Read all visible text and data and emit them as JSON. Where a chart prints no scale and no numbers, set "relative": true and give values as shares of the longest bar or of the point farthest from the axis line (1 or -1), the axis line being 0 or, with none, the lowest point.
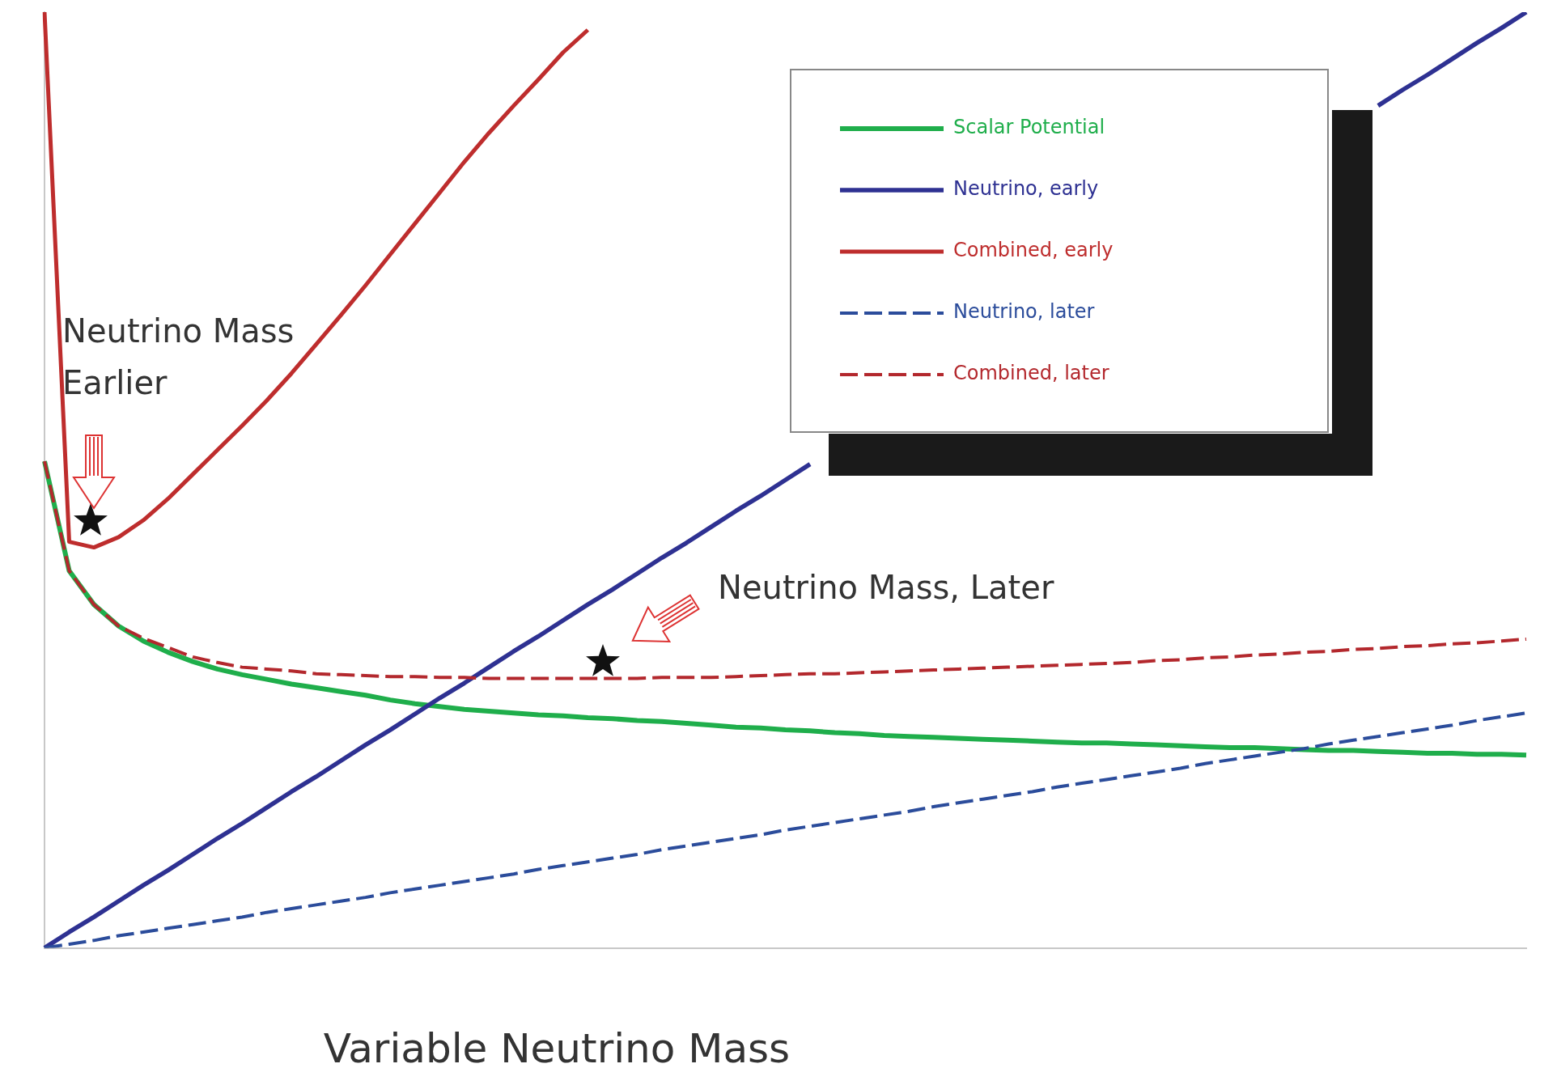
{
  "chart_data": {
    "type": "line",
    "relative": true,
    "xlabel": "Variable Neutrino Mass",
    "grid": false,
    "legend": "top right",
    "marker": "none",
    "annotations": [
      "Neutrino Mass Earlier",
      "Neutrino Mass, Later"
    ],
    "categories": [
      null,
      null,
      null,
      null,
      null,
      null,
      null,
      null,
      null,
      null,
      null,
      null,
      null,
      null,
      null,
      null,
      null,
      null,
      null,
      null,
      null,
      null,
      null,
      null,
      null,
      null,
      null,
      null,
      null,
      null,
      null,
      null,
      null,
      null,
      null,
      null,
      null,
      null,
      null,
      null,
      null,
      null,
      null,
      null,
      null,
      null,
      null,
      null,
      null,
      null,
      null,
      null,
      null,
      null,
      null,
      null,
      null,
      null,
      null,
      null,
      null
    ],
    "series": [
      {
        "name": "Scalar Potential",
        "color": "#1fae4b",
        "line_style": "solid",
        "values": [
          0.52,
          0.403,
          0.367,
          0.344,
          0.328,
          0.316,
          0.306,
          0.298,
          0.292,
          0.287,
          0.282,
          0.278,
          0.274,
          0.27,
          0.265,
          0.261,
          0.258,
          0.255,
          0.253,
          0.251,
          0.249,
          0.248,
          0.246,
          0.245,
          0.243,
          0.242,
          0.24,
          0.238,
          0.236,
          0.235,
          0.233,
          0.232,
          0.23,
          0.229,
          0.227,
          0.226,
          0.225,
          0.224,
          0.223,
          0.222,
          0.221,
          0.22,
          0.219,
          0.219,
          0.218,
          0.217,
          0.216,
          0.215,
          0.214,
          0.214,
          0.213,
          0.212,
          0.211,
          0.211,
          0.21,
          0.209,
          0.208,
          0.208,
          0.207,
          0.207,
          0.206
        ]
      },
      {
        "name": "Neutrino, early",
        "color": "#2e3192",
        "line_style": "solid",
        "values": [
          0,
          0.017,
          0.033,
          0.05,
          0.067,
          0.083,
          0.1,
          0.117,
          0.133,
          0.15,
          0.167,
          0.183,
          0.2,
          0.217,
          0.233,
          0.25,
          0.267,
          0.283,
          0.3,
          0.317,
          0.333,
          0.35,
          0.367,
          0.383,
          0.4,
          0.417,
          0.433,
          0.45,
          0.467,
          0.483,
          0.5,
          0.517,
          null,
          null,
          null,
          null,
          null,
          null,
          null,
          null,
          null,
          null,
          null,
          null,
          null,
          null,
          null,
          null,
          null,
          null,
          null,
          null,
          null,
          null,
          0.9,
          0.917,
          0.933,
          0.95,
          0.967,
          0.983,
          1.0
        ]
      },
      {
        "name": "Combined, early",
        "color": "#be2d2d",
        "line_style": "solid",
        "values": [
          1.0,
          0.434,
          0.428,
          0.439,
          0.457,
          0.48,
          0.506,
          0.532,
          0.558,
          0.585,
          0.614,
          0.645,
          0.676,
          0.708,
          0.741,
          0.774,
          0.807,
          0.84,
          0.871,
          0.9,
          0.928,
          0.957,
          0.981,
          null,
          null,
          null,
          null,
          null,
          null,
          null,
          null,
          null,
          null,
          null,
          null,
          null,
          null,
          null,
          null,
          null,
          null,
          null,
          null,
          null,
          null,
          null,
          null,
          null,
          null,
          null,
          null,
          null,
          null,
          null,
          null,
          null,
          null,
          null,
          null,
          null,
          null
        ]
      },
      {
        "name": "Neutrino, later",
        "color": "#2b4c9b",
        "line_style": "dashed",
        "values": [
          0,
          0.004,
          0.008,
          0.013,
          0.017,
          0.021,
          0.025,
          0.029,
          0.033,
          0.038,
          0.042,
          0.046,
          0.05,
          0.054,
          0.059,
          0.063,
          0.067,
          0.071,
          0.075,
          0.079,
          0.084,
          0.088,
          0.092,
          0.096,
          0.1,
          0.105,
          0.109,
          0.113,
          0.117,
          0.121,
          0.126,
          0.13,
          0.134,
          0.138,
          0.142,
          0.146,
          0.151,
          0.155,
          0.159,
          0.163,
          0.167,
          0.172,
          0.176,
          0.18,
          0.184,
          0.188,
          0.192,
          0.197,
          0.201,
          0.205,
          0.209,
          0.213,
          0.218,
          0.222,
          0.226,
          0.23,
          0.234,
          0.238,
          0.243,
          0.247,
          0.251
        ]
      },
      {
        "name": "Combined, later",
        "color": "#b3282d",
        "line_style": "dashed",
        "values": [
          0.52,
          0.403,
          0.367,
          0.344,
          0.331,
          0.321,
          0.311,
          0.305,
          0.3,
          0.298,
          0.296,
          0.293,
          0.292,
          0.291,
          0.29,
          0.29,
          0.289,
          0.289,
          0.288,
          0.288,
          0.288,
          0.288,
          0.288,
          0.288,
          0.288,
          0.289,
          0.289,
          0.289,
          0.29,
          0.291,
          0.292,
          0.293,
          0.293,
          0.294,
          0.295,
          0.296,
          0.297,
          0.298,
          0.299,
          0.3,
          0.301,
          0.302,
          0.303,
          0.304,
          0.305,
          0.307,
          0.308,
          0.31,
          0.311,
          0.313,
          0.314,
          0.316,
          0.317,
          0.319,
          0.32,
          0.322,
          0.323,
          0.325,
          0.326,
          0.328,
          0.33
        ]
      }
    ]
  }
}
